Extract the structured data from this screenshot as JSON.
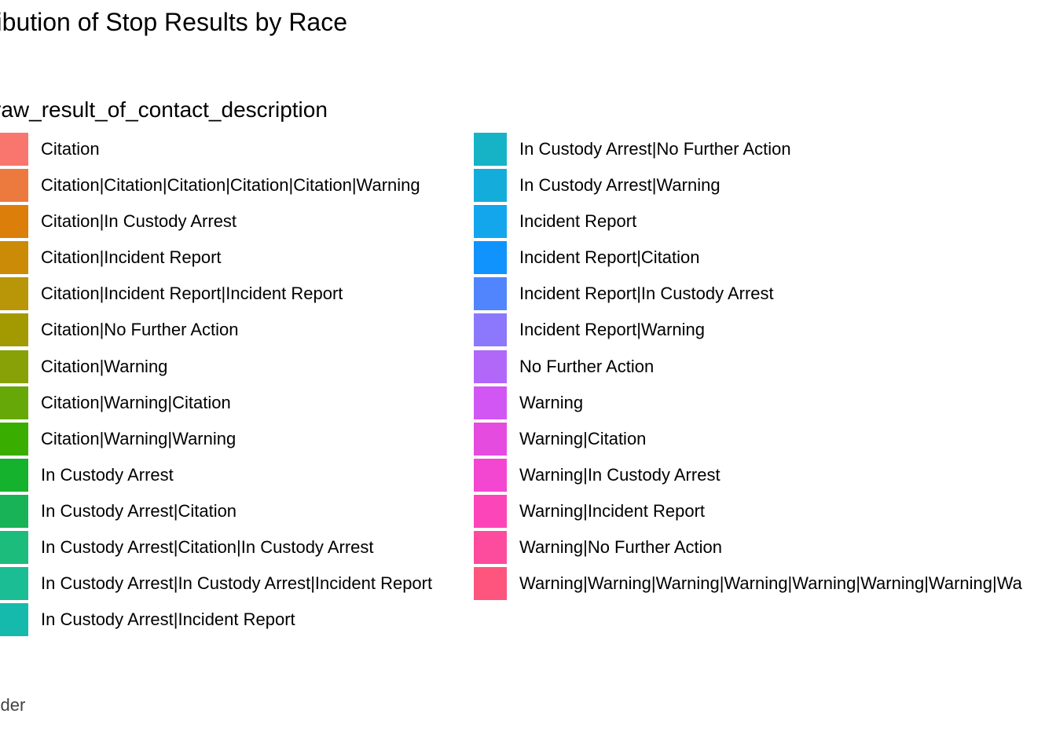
{
  "chart_data": {
    "type": "bar",
    "title": "tribution of Stop Results by Race",
    "legend_title": "raw_result_of_contact_description",
    "legend_placement": "main-panel",
    "caption": "ander",
    "legend": {
      "column1": [
        {
          "label": "Citation",
          "color": "#F8766D"
        },
        {
          "label": "Citation|Citation|Citation|Citation|Citation|Warning",
          "color": "#EC7A3F"
        },
        {
          "label": "Citation|In Custody Arrest",
          "color": "#DC7E0A"
        },
        {
          "label": "Citation|Incident Report",
          "color": "#CB8B06"
        },
        {
          "label": "Citation|Incident Report|Incident Report",
          "color": "#B99607"
        },
        {
          "label": "Citation|No Further Action",
          "color": "#A29A00"
        },
        {
          "label": "Citation|Warning",
          "color": "#87A106"
        },
        {
          "label": "Citation|Warning|Citation",
          "color": "#66A808"
        },
        {
          "label": "Citation|Warning|Warning",
          "color": "#39AD00"
        },
        {
          "label": "In Custody Arrest",
          "color": "#14B22D"
        },
        {
          "label": "In Custody Arrest|Citation",
          "color": "#19B357"
        },
        {
          "label": "In Custody Arrest|Citation|In Custody Arrest",
          "color": "#1CBC7D"
        },
        {
          "label": "In Custody Arrest|In Custody Arrest|Incident Report",
          "color": "#1BBD95"
        },
        {
          "label": "In Custody Arrest|Incident Report",
          "color": "#16BAAC"
        }
      ],
      "column2": [
        {
          "label": "In Custody Arrest|No Further Action",
          "color": "#15B3C5"
        },
        {
          "label": "In Custody Arrest|Warning",
          "color": "#14ADDB"
        },
        {
          "label": "Incident Report",
          "color": "#13A6EC"
        },
        {
          "label": "Incident Report|Citation",
          "color": "#1193FD"
        },
        {
          "label": "Incident Report|In Custody Arrest",
          "color": "#5185FD"
        },
        {
          "label": "Incident Report|Warning",
          "color": "#8B78FC"
        },
        {
          "label": "No Further Action",
          "color": "#B167F8"
        },
        {
          "label": "Warning",
          "color": "#D156F4"
        },
        {
          "label": "Warning|Citation",
          "color": "#E64BE0"
        },
        {
          "label": "Warning|In Custody Arrest",
          "color": "#F447D1"
        },
        {
          "label": "Warning|Incident Report",
          "color": "#FD45BA"
        },
        {
          "label": "Warning|No Further Action",
          "color": "#FD4C9E"
        },
        {
          "label": "Warning|Warning|Warning|Warning|Warning|Warning|Warning|Wa",
          "color": "#FE557E"
        }
      ]
    }
  }
}
